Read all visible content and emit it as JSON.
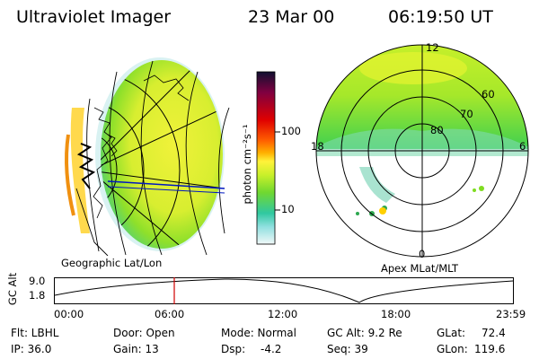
{
  "header": {
    "title": "Ultraviolet Imager",
    "date": "23 Mar 00",
    "time": "06:19:50 UT"
  },
  "colorbar": {
    "unit_label": "photon cm⁻²s⁻¹",
    "tick_100": "100",
    "tick_10": "10",
    "colors": [
      "#101030",
      "#800040",
      "#e00000",
      "#ff5000",
      "#ff9a00",
      "#fff23a",
      "#d4f22a",
      "#8fe02a",
      "#3fd050",
      "#22c8c8",
      "#a0e8e8",
      "#e8f4f4"
    ]
  },
  "left_panel": {
    "caption": "Geographic Lat/Lon"
  },
  "right_panel": {
    "caption": "Apex MLat/MLT",
    "mlt_labels": {
      "top": "12",
      "left": "18",
      "right": "6",
      "bottom": "0"
    },
    "lat_labels": {
      "l80": "80",
      "l70": "70",
      "l60": "60"
    }
  },
  "altitude_plot": {
    "ylabel": "GC Alt",
    "y_top": "9.0",
    "y_bottom": "1.8",
    "x_ticks": [
      "00:00",
      "06:00",
      "12:00",
      "18:00",
      "23:59"
    ],
    "marker_color": "#d00000"
  },
  "status": {
    "flt": "Flt: LBHL",
    "ip": "IP: 36.0",
    "door": "Door: Open",
    "gain": "Gain: 13",
    "mode": "Mode: Normal",
    "dsp_label": "Dsp:",
    "dsp_value": "-4.2",
    "gc_alt": "GC Alt: 9.2 Re",
    "seq": "Seq: 39",
    "glat_label": "GLat:",
    "glat_value": "72.4",
    "glon_label": "GLon:",
    "glon_value": "119.6"
  }
}
